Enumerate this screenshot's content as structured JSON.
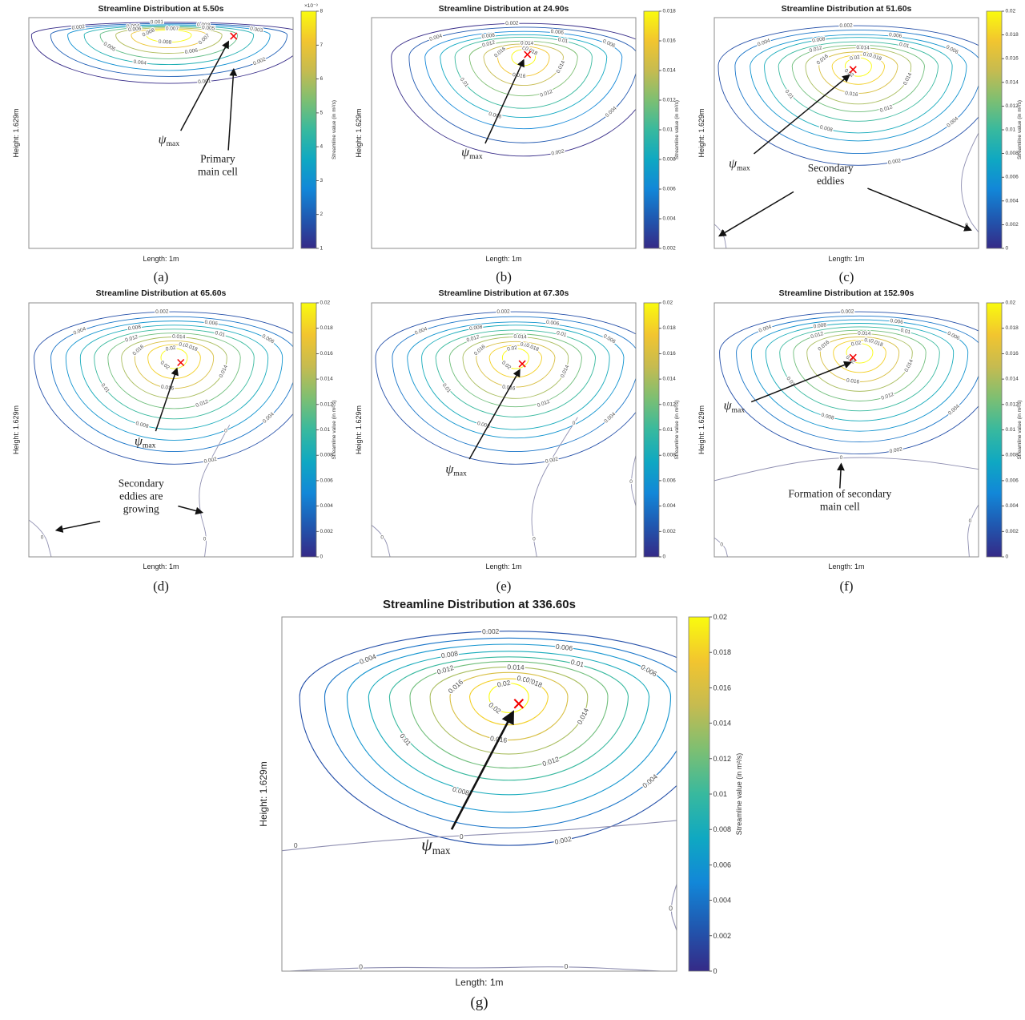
{
  "psi_label": {
    "symbol": "ψ",
    "sub": "max"
  },
  "theme": {
    "colormap": [
      "#352a87",
      "#2058b0",
      "#1287d8",
      "#0fa8c2",
      "#38b99e",
      "#7dbf72",
      "#c6bb50",
      "#f2c52f",
      "#f9fb0e"
    ],
    "frame_color": "#8c8c8c",
    "zero_contour_color": "#8f8fb1",
    "contour_label_color": "#4d4d4d",
    "marker_color": "#f40000",
    "arrow_color": "#111111",
    "text_color": "#1a1a1a"
  },
  "chart_data": [
    {
      "id": "a",
      "type": "contour",
      "caption": "(a)",
      "title": "Streamline Distribution at 5.50s",
      "xlabel": "Length: 1m",
      "ylabel": "Height: 1.629m",
      "colorbar": {
        "label": "Streamline value (in m²/s)",
        "multiplier": "×10⁻³",
        "ticks": [
          1,
          2,
          3,
          4,
          5,
          6,
          7,
          8
        ],
        "range": [
          0.001,
          0.008
        ]
      },
      "levels": [
        0.001,
        0.002,
        0.003,
        0.004,
        0.005,
        0.006,
        0.007,
        0.008
      ],
      "geometry": {
        "center": [
          0.53,
          0.075
        ],
        "outer": [
          0.52,
          0.055,
          0.21
        ],
        "inner": [
          0.085,
          0.022,
          0.032
        ]
      },
      "marker": {
        "x": 0.775,
        "y": 0.08
      },
      "annotations": [
        {
          "kind": "psi",
          "x": 0.53,
          "y": 0.545,
          "arrows": [
            [
              0.575,
              0.49,
              0.755,
              0.105
            ]
          ]
        },
        {
          "kind": "text",
          "lines": [
            "Primary",
            "main cell"
          ],
          "x": 0.715,
          "y": 0.655,
          "arrows": [
            [
              0.755,
              0.575,
              0.775,
              0.225
            ]
          ]
        }
      ],
      "zero_contours": []
    },
    {
      "id": "b",
      "type": "contour",
      "caption": "(b)",
      "title": "Streamline Distribution at 24.90s",
      "xlabel": "Length: 1m",
      "ylabel": "Height: 1.629m",
      "colorbar": {
        "label": "Streamline value (in m²/s)",
        "ticks": [
          0.002,
          0.004,
          0.006,
          0.008,
          0.01,
          0.012,
          0.014,
          0.016,
          0.018
        ],
        "range": [
          0.002,
          0.018
        ]
      },
      "levels": [
        0.002,
        0.004,
        0.006,
        0.008,
        0.01,
        0.012,
        0.014,
        0.016,
        0.018
      ],
      "geometry": {
        "center": [
          0.575,
          0.17
        ],
        "outer": [
          0.5,
          0.145,
          0.43
        ],
        "inner": [
          0.045,
          0.032,
          0.038
        ]
      },
      "marker": {
        "x": 0.59,
        "y": 0.16
      },
      "annotations": [
        {
          "kind": "psi",
          "x": 0.38,
          "y": 0.6,
          "arrows": [
            [
              0.43,
              0.545,
              0.575,
              0.185
            ]
          ]
        }
      ],
      "zero_contours": []
    },
    {
      "id": "c",
      "type": "contour",
      "caption": "(c)",
      "title": "Streamline Distribution at 51.60s",
      "xlabel": "Length: 1m",
      "ylabel": "Height: 1.629m",
      "colorbar": {
        "label": "Streamline value (in m²/s)",
        "ticks": [
          0,
          0.002,
          0.004,
          0.006,
          0.008,
          0.01,
          0.012,
          0.014,
          0.016,
          0.018,
          0.02
        ],
        "range": [
          0,
          0.02
        ]
      },
      "levels": [
        0.002,
        0.004,
        0.006,
        0.008,
        0.01,
        0.012,
        0.014,
        0.016,
        0.018,
        0.02
      ],
      "geometry": {
        "center": [
          0.545,
          0.21
        ],
        "outer": [
          0.53,
          0.175,
          0.43
        ],
        "inner": [
          0.05,
          0.036,
          0.044
        ]
      },
      "marker": {
        "x": 0.525,
        "y": 0.225
      },
      "annotations": [
        {
          "kind": "psi",
          "x": 0.095,
          "y": 0.65,
          "arrows": [
            [
              0.15,
              0.59,
              0.51,
              0.25
            ]
          ]
        },
        {
          "kind": "text",
          "lines": [
            "Secondary",
            "eddies"
          ],
          "x": 0.44,
          "y": 0.695,
          "arrows": [
            [
              0.3,
              0.755,
              0.02,
              0.945
            ],
            [
              0.58,
              0.74,
              0.97,
              0.92
            ]
          ]
        }
      ],
      "zero_contours": [
        {
          "pts": [
            [
              0,
              0.895
            ],
            [
              0.035,
              0.93
            ],
            [
              0.045,
              1.0
            ]
          ],
          "labels": [
            [
              0.03,
              0.93
            ]
          ]
        },
        {
          "pts": [
            [
              1.0,
              0.5
            ],
            [
              0.945,
              0.62
            ],
            [
              0.93,
              0.75
            ],
            [
              0.96,
              0.87
            ],
            [
              1.0,
              0.93
            ]
          ],
          "labels": [
            [
              0.955,
              0.9
            ]
          ]
        }
      ]
    },
    {
      "id": "d",
      "type": "contour",
      "caption": "(d)",
      "title": "Streamline Distribution at 65.60s",
      "xlabel": "Length: 1m",
      "ylabel": "Height: 1.629m",
      "colorbar": {
        "label": "Streamline value (in m²/s)",
        "ticks": [
          0,
          0.002,
          0.004,
          0.006,
          0.008,
          0.01,
          0.012,
          0.014,
          0.016,
          0.018,
          0.02
        ],
        "range": [
          0,
          0.02
        ]
      },
      "levels": [
        0.002,
        0.004,
        0.006,
        0.008,
        0.01,
        0.012,
        0.014,
        0.016,
        0.018,
        0.02
      ],
      "geometry": {
        "center": [
          0.55,
          0.215
        ],
        "outer": [
          0.53,
          0.18,
          0.42
        ],
        "inner": [
          0.05,
          0.036,
          0.044
        ]
      },
      "marker": {
        "x": 0.575,
        "y": 0.235
      },
      "annotations": [
        {
          "kind": "psi",
          "x": 0.44,
          "y": 0.56,
          "arrows": [
            [
              0.48,
              0.505,
              0.56,
              0.26
            ]
          ]
        },
        {
          "kind": "text",
          "lines": [
            "Secondary",
            "eddies are",
            "growing"
          ],
          "x": 0.425,
          "y": 0.775,
          "arrows": [
            [
              0.27,
              0.86,
              0.105,
              0.895
            ],
            [
              0.565,
              0.8,
              0.655,
              0.825
            ]
          ]
        }
      ],
      "zero_contours": [
        {
          "pts": [
            [
              0,
              0.855
            ],
            [
              0.06,
              0.9
            ],
            [
              0.085,
              1.0
            ]
          ],
          "labels": [
            [
              0.05,
              0.925
            ]
          ]
        },
        {
          "pts": [
            [
              0.76,
              0.48
            ],
            [
              0.705,
              0.585
            ],
            [
              0.645,
              0.7
            ],
            [
              0.645,
              0.82
            ],
            [
              0.675,
              0.92
            ],
            [
              0.665,
              1.0
            ]
          ],
          "labels": [
            [
              0.745,
              0.505
            ],
            [
              0.665,
              0.93
            ]
          ]
        }
      ]
    },
    {
      "id": "e",
      "type": "contour",
      "caption": "(e)",
      "title": "Streamline Distribution at 67.30s",
      "xlabel": "Length: 1m",
      "ylabel": "Height: 1.629m",
      "colorbar": {
        "label": "Streamline value (in m²/s)",
        "ticks": [
          0,
          0.002,
          0.004,
          0.006,
          0.008,
          0.01,
          0.012,
          0.014,
          0.016,
          0.018,
          0.02
        ],
        "range": [
          0,
          0.02
        ]
      },
      "levels": [
        0.002,
        0.004,
        0.006,
        0.008,
        0.01,
        0.012,
        0.014,
        0.016,
        0.018,
        0.02
      ],
      "geometry": {
        "center": [
          0.545,
          0.215
        ],
        "outer": [
          0.53,
          0.18,
          0.42
        ],
        "inner": [
          0.05,
          0.036,
          0.044
        ]
      },
      "marker": {
        "x": 0.57,
        "y": 0.24
      },
      "annotations": [
        {
          "kind": "psi",
          "x": 0.32,
          "y": 0.67,
          "arrows": [
            [
              0.37,
              0.615,
              0.56,
              0.265
            ]
          ]
        }
      ],
      "zero_contours": [
        {
          "pts": [
            [
              0,
              0.875
            ],
            [
              0.05,
              0.915
            ],
            [
              0.07,
              1.0
            ]
          ],
          "labels": [
            [
              0.04,
              0.925
            ]
          ]
        },
        {
          "pts": [
            [
              0.78,
              0.45
            ],
            [
              0.7,
              0.58
            ],
            [
              0.625,
              0.72
            ],
            [
              0.6,
              0.85
            ],
            [
              0.625,
              1.0
            ]
          ],
          "labels": [
            [
              0.765,
              0.475
            ],
            [
              0.615,
              0.93
            ]
          ]
        },
        {
          "pts": [
            [
              1.0,
              0.6
            ],
            [
              0.975,
              0.7
            ],
            [
              1.0,
              0.8
            ]
          ],
          "labels": [
            [
              0.982,
              0.705
            ]
          ]
        }
      ]
    },
    {
      "id": "f",
      "type": "contour",
      "caption": "(f)",
      "title": "Streamline Distribution at 152.90s",
      "xlabel": "Length: 1m",
      "ylabel": "Height: 1.629m",
      "colorbar": {
        "label": "Streamline value (in m²/s)",
        "ticks": [
          0,
          0.002,
          0.004,
          0.006,
          0.008,
          0.01,
          0.012,
          0.014,
          0.016,
          0.018,
          0.02
        ],
        "range": [
          0,
          0.02
        ]
      },
      "levels": [
        0.002,
        0.004,
        0.006,
        0.008,
        0.01,
        0.012,
        0.014,
        0.016,
        0.018,
        0.02
      ],
      "geometry": {
        "center": [
          0.55,
          0.195
        ],
        "outer": [
          0.53,
          0.16,
          0.4
        ],
        "inner": [
          0.05,
          0.035,
          0.042
        ]
      },
      "marker": {
        "x": 0.525,
        "y": 0.215
      },
      "annotations": [
        {
          "kind": "psi",
          "x": 0.075,
          "y": 0.42,
          "arrows": [
            [
              0.14,
              0.39,
              0.515,
              0.235
            ]
          ]
        },
        {
          "kind": "text",
          "lines": [
            "Formation of secondary",
            "main cell"
          ],
          "x": 0.475,
          "y": 0.79,
          "arrows": [
            [
              0.475,
              0.73,
              0.48,
              0.635
            ]
          ]
        }
      ],
      "zero_contours": [
        {
          "pts": [
            [
              0,
              0.7
            ],
            [
              0.25,
              0.635
            ],
            [
              0.5,
              0.605
            ],
            [
              0.75,
              0.615
            ],
            [
              1.0,
              0.655
            ]
          ],
          "labels": [
            [
              0.48,
              0.61
            ]
          ]
        },
        {
          "pts": [
            [
              0,
              0.925
            ],
            [
              0.04,
              0.955
            ],
            [
              0.05,
              1.0
            ]
          ],
          "labels": [
            [
              0.028,
              0.952
            ]
          ]
        },
        {
          "pts": [
            [
              1.0,
              0.795
            ],
            [
              0.955,
              0.87
            ],
            [
              0.965,
              1.0
            ]
          ],
          "labels": [
            [
              0.968,
              0.86
            ]
          ]
        }
      ]
    },
    {
      "id": "g",
      "type": "contour",
      "caption": "(g)",
      "title": "Streamline Distribution at 336.60s",
      "xlabel": "Length: 1m",
      "ylabel": "Height: 1.629m",
      "colorbar": {
        "label": "Streamline value (in m²/s)",
        "ticks": [
          0,
          0.002,
          0.004,
          0.006,
          0.008,
          0.01,
          0.012,
          0.014,
          0.016,
          0.018,
          0.02
        ],
        "range": [
          0,
          0.02
        ]
      },
      "levels": [
        0.002,
        0.004,
        0.006,
        0.008,
        0.01,
        0.012,
        0.014,
        0.016,
        0.018,
        0.02
      ],
      "geometry": {
        "center": [
          0.575,
          0.225
        ],
        "outer": [
          0.53,
          0.185,
          0.42
        ],
        "inner": [
          0.05,
          0.038,
          0.045
        ]
      },
      "marker": {
        "x": 0.6,
        "y": 0.245
      },
      "annotations": [
        {
          "kind": "psi",
          "x": 0.39,
          "y": 0.66,
          "arrows": [
            [
              0.43,
              0.6,
              0.585,
              0.27
            ]
          ]
        }
      ],
      "zero_contours": [
        {
          "pts": [
            [
              0,
              0.66
            ],
            [
              0.25,
              0.63
            ],
            [
              0.5,
              0.615
            ],
            [
              0.75,
              0.6
            ],
            [
              1.0,
              0.575
            ]
          ],
          "labels": [
            [
              0.035,
              0.645
            ],
            [
              0.455,
              0.62
            ]
          ]
        },
        {
          "pts": [
            [
              0.02,
              1.0
            ],
            [
              0.2,
              0.988
            ],
            [
              0.5,
              0.992
            ],
            [
              0.72,
              0.986
            ],
            [
              0.96,
              1.0
            ]
          ],
          "labels": [
            [
              0.2,
              0.988
            ],
            [
              0.72,
              0.986
            ]
          ]
        },
        {
          "pts": [
            [
              1.0,
              0.755
            ],
            [
              0.98,
              0.82
            ],
            [
              1.0,
              0.885
            ]
          ],
          "labels": [
            [
              0.985,
              0.822
            ]
          ]
        }
      ]
    }
  ]
}
